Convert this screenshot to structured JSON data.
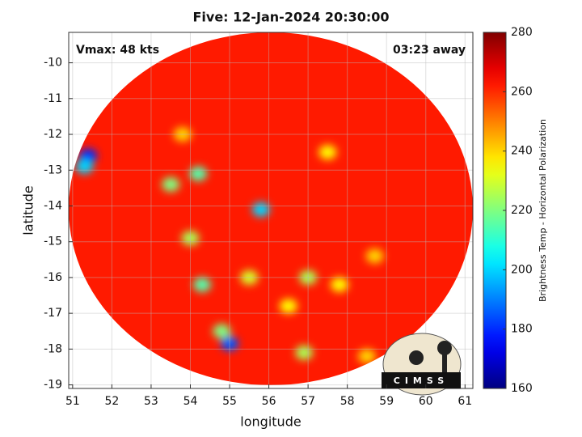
{
  "chart_data": {
    "type": "heatmap-scatter",
    "title": "Five: 12-Jan-2024 20:30:00",
    "annotations": [
      "Vmax: 48 kts",
      "03:23 away"
    ],
    "x_label": "longitude",
    "y_label": "latitude",
    "colorbar_label": "Brightness Temp - Horizontal Polarization",
    "logo": "CIMSS",
    "xlim": [
      50.9,
      61.2
    ],
    "xticks": [
      51,
      52,
      53,
      54,
      55,
      56,
      57,
      58,
      59,
      60,
      61
    ],
    "ylim": [
      -19.1,
      -9.15
    ],
    "yticks": [
      -10,
      -11,
      -12,
      -13,
      -14,
      -15,
      -16,
      -17,
      -18,
      -19
    ],
    "clim": [
      160,
      280
    ],
    "cticks": [
      160,
      180,
      200,
      220,
      240,
      260,
      280
    ],
    "colormap": "jet",
    "grid": true,
    "background_value": 262,
    "x": [
      51.4,
      51.3,
      55.0,
      55.8,
      54.2,
      53.5,
      54.0,
      54.3,
      54.8,
      55.5,
      57.0,
      56.5,
      56.9,
      57.8,
      57.5,
      58.7,
      53.8,
      58.5
    ],
    "y": [
      -12.6,
      -12.9,
      -17.85,
      -14.1,
      -13.1,
      -13.4,
      -14.9,
      -16.2,
      -17.5,
      -16.0,
      -16.0,
      -16.8,
      -18.1,
      -16.2,
      -12.5,
      -15.4,
      -12.0,
      -18.2
    ],
    "values": [
      180,
      200,
      185,
      200,
      215,
      220,
      225,
      215,
      220,
      230,
      225,
      235,
      225,
      235,
      235,
      240,
      240,
      240
    ]
  }
}
